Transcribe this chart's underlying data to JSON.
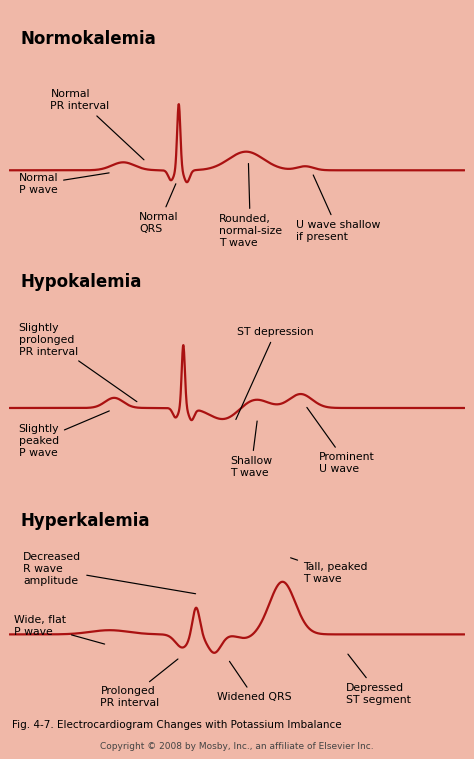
{
  "title_normo": "Normokalemia",
  "title_hypo": "Hypokalemia",
  "title_hyper": "Hyperkalemia",
  "header_bg": "#e8857a",
  "panel_bg": "#ffffff",
  "outer_bg": "#f0b8a8",
  "ecg_color": "#aa1111",
  "border_color": "#c07060",
  "footer": "Fig. 4-7. Electrocardiogram Changes with Potassium Imbalance",
  "copyright": "Copyright © 2008 by Mosby, Inc., an affiliate of Elsevier Inc."
}
